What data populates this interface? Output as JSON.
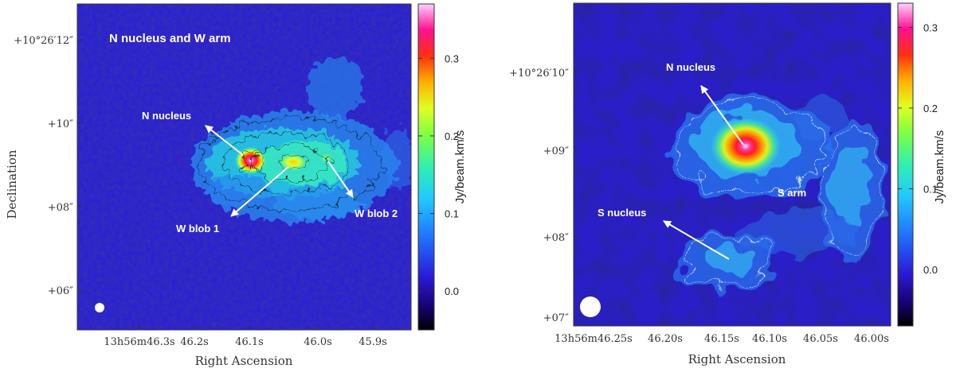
{
  "figure": {
    "y_label": "Declination",
    "x_label": "Right Ascension"
  },
  "chart_data": [
    {
      "type": "heatmap",
      "title": "N nucleus and W arm",
      "xlabel": "Right Ascension",
      "ylabel": "Declination",
      "x_ticks": [
        "13h56m46.3s",
        "46.2s",
        "46.1s",
        "46.0s",
        "45.9s"
      ],
      "y_ticks": [
        "+10°26′12″",
        "+10″",
        "+08″",
        "+06″"
      ],
      "colorbar": {
        "label": "Jy/beam.km/s",
        "range": [
          -0.05,
          0.37
        ],
        "ticks": [
          "0.3",
          "0.2",
          "0.1",
          "0.0"
        ],
        "tick_values": [
          0.3,
          0.2,
          0.1,
          0.0
        ]
      },
      "annotations": [
        "N nucleus",
        "W blob 1",
        "W blob 2"
      ],
      "sources": [
        {
          "name": "N nucleus",
          "peak": 0.36
        },
        {
          "name": "W blob 1",
          "peak": 0.22
        },
        {
          "name": "W blob 2",
          "peak": 0.15
        }
      ]
    },
    {
      "type": "heatmap",
      "title": "",
      "xlabel": "Right Ascension",
      "ylabel": "",
      "x_ticks": [
        "13h56m46.25s",
        "46.20s",
        "46.15s",
        "46.10s",
        "46.05s",
        "46.00s"
      ],
      "y_ticks": [
        "+10°26′10″",
        "+09″",
        "+08″",
        "+07″"
      ],
      "colorbar": {
        "label": "Jy/beam.km/s",
        "range": [
          -0.07,
          0.33
        ],
        "ticks": [
          "0.3",
          "0.2",
          "0.1",
          "0.0"
        ],
        "tick_values": [
          0.3,
          0.2,
          0.1,
          0.0
        ]
      },
      "annotations": [
        "N nucleus",
        "S nucleus",
        "S arm"
      ],
      "sources": [
        {
          "name": "N nucleus",
          "peak": 0.32
        },
        {
          "name": "S nucleus",
          "peak": 0.12
        },
        {
          "name": "S arm",
          "peak": 0.1
        }
      ]
    }
  ]
}
